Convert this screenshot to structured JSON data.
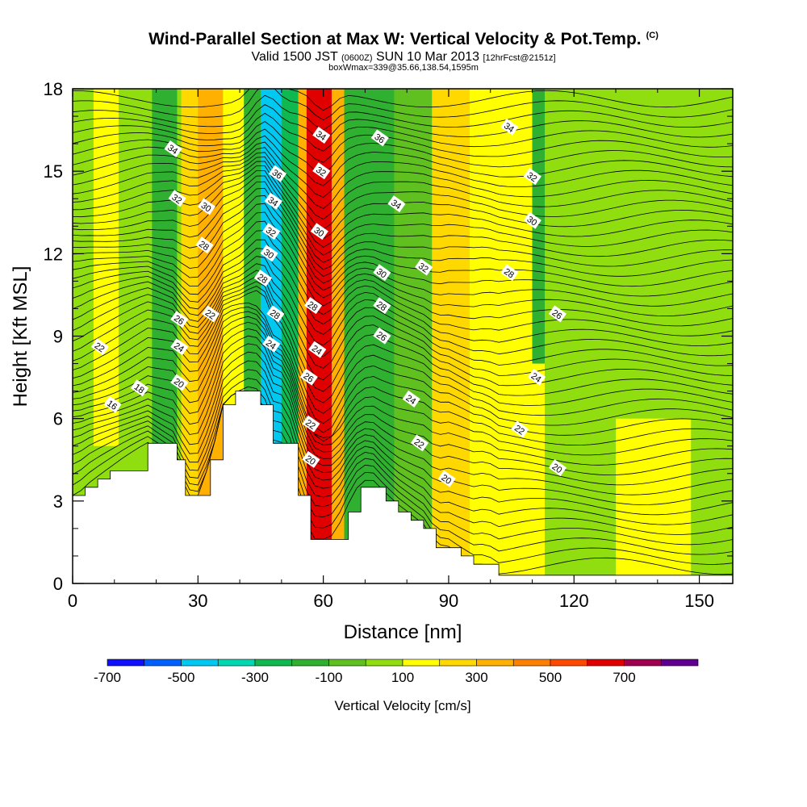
{
  "header": {
    "title": "Wind-Parallel Section at Max W: Vertical Velocity & Pot.Temp.",
    "title_mark": "(C)",
    "valid_prefix": "Valid 1500 JST",
    "valid_utc": "(0600Z)",
    "valid_date": "SUN 10 Mar 2013",
    "forecast": "[12hrFcst@2151z]",
    "box_info": "boxWmax=339@35.66,138.54,1595m"
  },
  "chart_data": {
    "type": "heatmap",
    "xlabel": "Distance [nm]",
    "ylabel": "Height [Kft MSL]",
    "xlim": [
      0,
      158
    ],
    "ylim": [
      0,
      18
    ],
    "x_ticks": [
      0,
      30,
      60,
      90,
      120,
      150
    ],
    "y_ticks": [
      0,
      3,
      6,
      9,
      12,
      15,
      18
    ],
    "colorbar": {
      "label": "Vertical Velocity [cm/s]",
      "tick_labels": [
        "-700",
        "-500",
        "-300",
        "-100",
        "100",
        "300",
        "500",
        "700"
      ],
      "bins": [
        -700,
        -600,
        -500,
        -400,
        -300,
        -200,
        -100,
        0,
        100,
        200,
        300,
        400,
        500,
        600,
        700,
        800
      ],
      "colors": [
        "#1010ff",
        "#0060ff",
        "#00c8f0",
        "#00d8b4",
        "#10b850",
        "#30b030",
        "#60c020",
        "#90dd10",
        "#ffff00",
        "#ffd800",
        "#ffb000",
        "#ff8000",
        "#ff4800",
        "#e00000",
        "#a00050",
        "#600090"
      ]
    },
    "velocity_bands": [
      {
        "x": [
          0,
          21
        ],
        "w_cm_s": 0
      },
      {
        "x": [
          5,
          11
        ],
        "y": [
          5,
          18
        ],
        "w_cm_s": 100
      },
      {
        "x": [
          19,
          25
        ],
        "w_cm_s": -150
      },
      {
        "x": [
          26,
          30
        ],
        "w_cm_s": 200
      },
      {
        "x": [
          30,
          36
        ],
        "w_cm_s": 350
      },
      {
        "x": [
          36,
          41
        ],
        "w_cm_s": 150
      },
      {
        "x": [
          41,
          45
        ],
        "w_cm_s": -150
      },
      {
        "x": [
          45,
          50
        ],
        "w_cm_s": -450
      },
      {
        "x": [
          50,
          54
        ],
        "w_cm_s": -250
      },
      {
        "x": [
          54,
          56
        ],
        "w_cm_s": 300
      },
      {
        "x": [
          56,
          62
        ],
        "w_cm_s": 650
      },
      {
        "x": [
          62,
          65
        ],
        "w_cm_s": 300
      },
      {
        "x": [
          65,
          77
        ],
        "w_cm_s": -200
      },
      {
        "x": [
          77,
          88
        ],
        "w_cm_s": -50
      },
      {
        "x": [
          86,
          95
        ],
        "w_cm_s": 250
      },
      {
        "x": [
          95,
          113
        ],
        "w_cm_s": 100
      },
      {
        "x": [
          110,
          120
        ],
        "y": [
          8,
          18
        ],
        "w_cm_s": -200
      },
      {
        "x": [
          113,
          158
        ],
        "w_cm_s": 0
      },
      {
        "x": [
          130,
          148
        ],
        "y": [
          0,
          6
        ],
        "w_cm_s": 100
      }
    ],
    "terrain_kft": {
      "x": [
        0,
        1,
        3,
        6,
        9,
        18,
        25,
        27,
        30,
        33,
        36,
        39,
        42,
        45,
        48,
        51,
        54,
        57,
        60,
        63,
        66,
        69,
        72,
        75,
        78,
        81,
        84,
        87,
        90,
        93,
        96,
        99,
        102,
        105,
        108,
        111,
        114,
        117,
        120,
        125,
        130,
        135,
        140,
        145,
        150,
        155,
        158
      ],
      "y": [
        3.2,
        3.2,
        3.5,
        3.8,
        4.1,
        5.1,
        4.5,
        3.2,
        3.2,
        4.5,
        6.5,
        7.0,
        7.0,
        6.5,
        5.1,
        5.1,
        3.2,
        1.6,
        1.6,
        1.6,
        2.6,
        3.5,
        3.5,
        3.0,
        2.6,
        2.3,
        2.0,
        1.3,
        1.3,
        1.0,
        0.7,
        0.7,
        0.3,
        0.3,
        0.3,
        0.3,
        0.3,
        0.3,
        0.3,
        0.3,
        0.3,
        0.3,
        0.3,
        0.3,
        0.3,
        0.3,
        0.3
      ]
    },
    "theta_contours": {
      "start_temp": 12,
      "step": 0.5,
      "count": 48,
      "labels": [
        {
          "text": "34",
          "x": 24.0,
          "y": 15.8
        },
        {
          "text": "32",
          "x": 25.0,
          "y": 14.0
        },
        {
          "text": "30",
          "x": 32.0,
          "y": 13.7
        },
        {
          "text": "28",
          "x": 31.5,
          "y": 12.3
        },
        {
          "text": "22",
          "x": 33.0,
          "y": 9.8
        },
        {
          "text": "26",
          "x": 25.5,
          "y": 9.6
        },
        {
          "text": "24",
          "x": 25.5,
          "y": 8.6
        },
        {
          "text": "22",
          "x": 6.5,
          "y": 8.6
        },
        {
          "text": "20",
          "x": 25.5,
          "y": 7.3
        },
        {
          "text": "18",
          "x": 16.0,
          "y": 7.1
        },
        {
          "text": "16",
          "x": 9.5,
          "y": 6.5
        },
        {
          "text": "36",
          "x": 49.0,
          "y": 14.9
        },
        {
          "text": "34",
          "x": 48.0,
          "y": 13.9
        },
        {
          "text": "32",
          "x": 47.5,
          "y": 12.8
        },
        {
          "text": "30",
          "x": 47.0,
          "y": 12.0
        },
        {
          "text": "28",
          "x": 45.5,
          "y": 11.1
        },
        {
          "text": "28",
          "x": 48.5,
          "y": 9.8
        },
        {
          "text": "24",
          "x": 47.5,
          "y": 8.7
        },
        {
          "text": "34",
          "x": 59.5,
          "y": 16.3
        },
        {
          "text": "32",
          "x": 59.5,
          "y": 15.0
        },
        {
          "text": "30",
          "x": 59.0,
          "y": 12.8
        },
        {
          "text": "28",
          "x": 57.5,
          "y": 10.1
        },
        {
          "text": "24",
          "x": 58.5,
          "y": 8.5
        },
        {
          "text": "26",
          "x": 56.5,
          "y": 7.5
        },
        {
          "text": "22",
          "x": 57.0,
          "y": 5.8
        },
        {
          "text": "20",
          "x": 57.0,
          "y": 4.5
        },
        {
          "text": "36",
          "x": 73.5,
          "y": 16.2
        },
        {
          "text": "34",
          "x": 77.5,
          "y": 13.8
        },
        {
          "text": "32",
          "x": 84.0,
          "y": 11.5
        },
        {
          "text": "30",
          "x": 74.0,
          "y": 11.3
        },
        {
          "text": "28",
          "x": 74.0,
          "y": 10.1
        },
        {
          "text": "26",
          "x": 74.0,
          "y": 9.0
        },
        {
          "text": "24",
          "x": 81.0,
          "y": 6.7
        },
        {
          "text": "22",
          "x": 83.0,
          "y": 5.1
        },
        {
          "text": "20",
          "x": 89.5,
          "y": 3.8
        },
        {
          "text": "34",
          "x": 104.5,
          "y": 16.6
        },
        {
          "text": "32",
          "x": 110.0,
          "y": 14.8
        },
        {
          "text": "30",
          "x": 110.0,
          "y": 13.2
        },
        {
          "text": "28",
          "x": 104.5,
          "y": 11.3
        },
        {
          "text": "26",
          "x": 116.0,
          "y": 9.8
        },
        {
          "text": "24",
          "x": 111.0,
          "y": 7.5
        },
        {
          "text": "22",
          "x": 107.0,
          "y": 5.6
        },
        {
          "text": "20",
          "x": 116.0,
          "y": 4.2
        }
      ]
    }
  }
}
